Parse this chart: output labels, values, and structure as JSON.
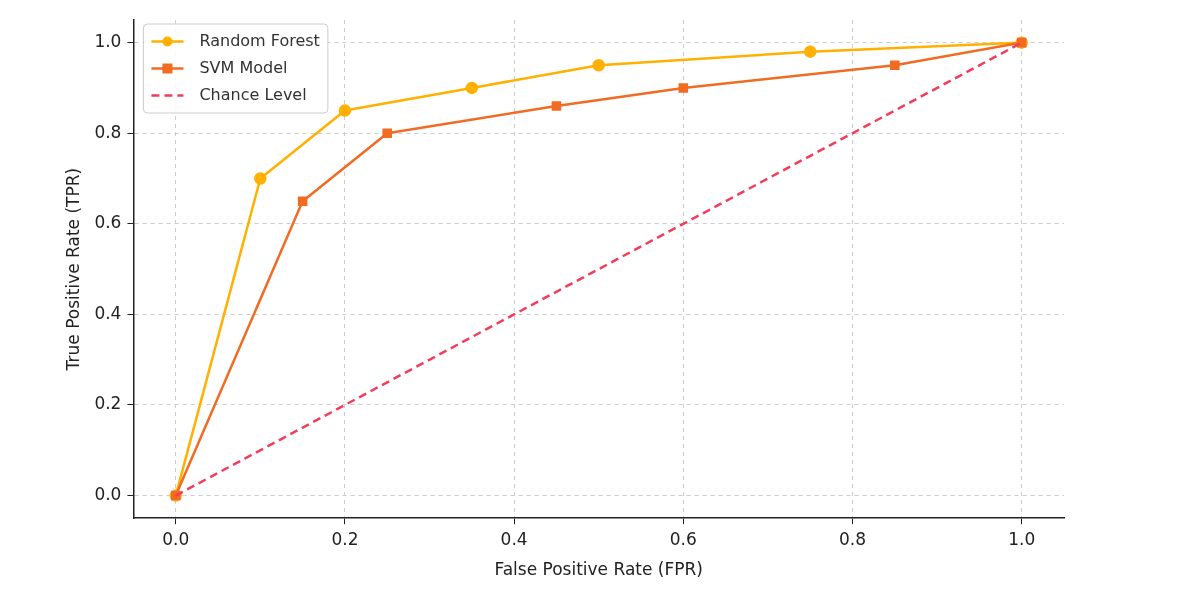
{
  "chart_data": {
    "type": "line",
    "xlabel": "False Positive Rate (FPR)",
    "ylabel": "True Positive Rate (TPR)",
    "xlim": [
      -0.05,
      1.05
    ],
    "xticks": [
      {
        "value": 0,
        "label": "0.0"
      },
      {
        "value": 0.2,
        "label": "0.2"
      },
      {
        "value": 0.4,
        "label": "0.4"
      },
      {
        "value": 0.6,
        "label": "0.6"
      },
      {
        "value": 0.8,
        "label": "0.8"
      },
      {
        "value": 1,
        "label": "1.0"
      }
    ],
    "ylim": [
      -0.05,
      1.05
    ],
    "yticks": [
      {
        "value": 0,
        "label": "0.0"
      },
      {
        "value": 0.2,
        "label": "0.2"
      },
      {
        "value": 0.4,
        "label": "0.4"
      },
      {
        "value": 0.6,
        "label": "0.6"
      },
      {
        "value": 0.8,
        "label": "0.8"
      },
      {
        "value": 1,
        "label": "1.0"
      }
    ],
    "grid": true,
    "legend": "top left",
    "series": [
      {
        "name": "Random Forest",
        "color": "#ffb000",
        "marker": "circle",
        "line_style": "solid",
        "x": [
          0,
          0.1,
          0.2,
          0.35,
          0.5,
          0.75,
          1
        ],
        "values": [
          0,
          0.7,
          0.85,
          0.9,
          0.95,
          0.98,
          1
        ]
      },
      {
        "name": "SVM Model",
        "color": "#f26b22",
        "marker": "square",
        "line_style": "solid",
        "x": [
          0,
          0.15,
          0.25,
          0.45,
          0.6,
          0.85,
          1
        ],
        "values": [
          0,
          0.65,
          0.8,
          0.86,
          0.9,
          0.95,
          1
        ]
      },
      {
        "name": "Chance Level",
        "color": "#f23c5a",
        "marker": "none",
        "line_style": "dashed",
        "x": [
          0,
          1
        ],
        "values": [
          0,
          1
        ]
      }
    ]
  }
}
